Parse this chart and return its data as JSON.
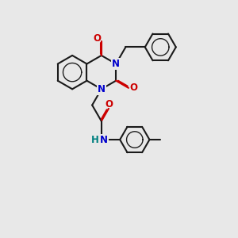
{
  "bg_color": "#e8e8e8",
  "bond_color": "#1a1a1a",
  "N_color": "#0000cc",
  "O_color": "#cc0000",
  "NH_color": "#008080",
  "bond_width": 1.5,
  "font_size_atom": 8.5,
  "figsize": [
    3.0,
    3.0
  ],
  "dpi": 100,
  "xlim": [
    0,
    10
  ],
  "ylim": [
    0,
    10
  ]
}
